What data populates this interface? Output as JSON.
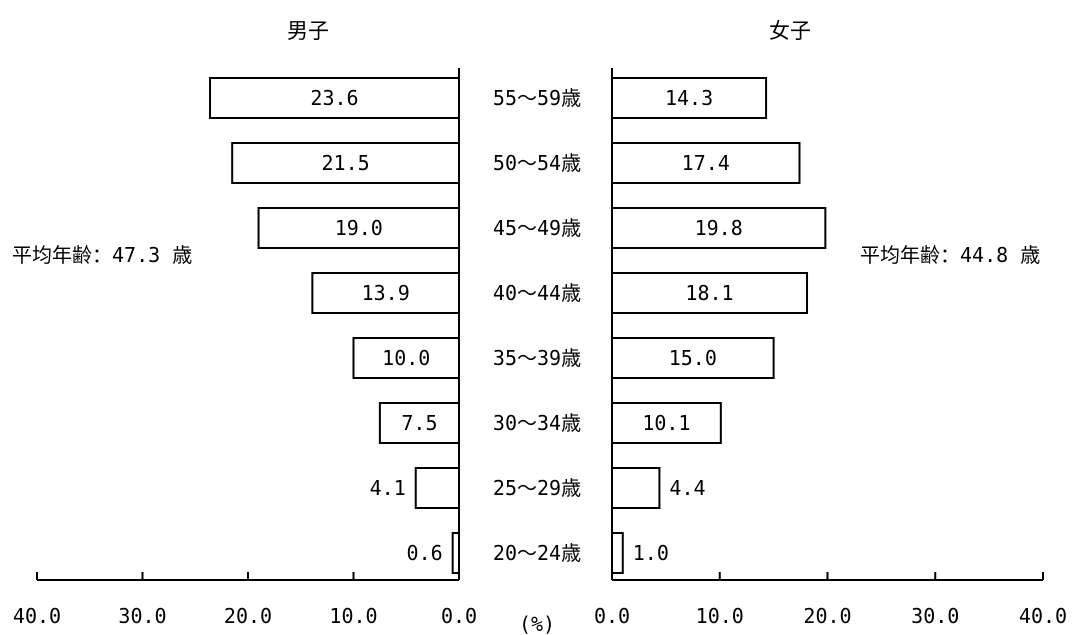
{
  "chart_data": {
    "type": "bar",
    "orientation": "horizontal-diverging",
    "categories": [
      "55～59歳",
      "50～54歳",
      "45～49歳",
      "40～44歳",
      "35～39歳",
      "30～34歳",
      "25～29歳",
      "20～24歳"
    ],
    "series": [
      {
        "name": "男子",
        "values": [
          23.6,
          21.5,
          19.0,
          13.9,
          10.0,
          7.5,
          4.1,
          0.6
        ]
      },
      {
        "name": "女子",
        "values": [
          14.3,
          17.4,
          19.8,
          18.1,
          15.0,
          10.1,
          4.4,
          1.0
        ]
      }
    ],
    "value_labels": {
      "male": [
        "23.6",
        "21.5",
        "19.0",
        "13.9",
        "10.0",
        "7.5",
        "4.1",
        "0.6"
      ],
      "female": [
        "14.3",
        "17.4",
        "19.8",
        "18.1",
        "15.0",
        "10.1",
        "4.4",
        "1.0"
      ]
    },
    "average_labels": {
      "male": "平均年齢：47.3 歳",
      "female": "平均年齢：44.8 歳"
    },
    "unit_label": "(%)",
    "xlim": [
      0,
      40
    ],
    "x_ticks": [
      0,
      10,
      20,
      30,
      40
    ],
    "x_tick_labels": {
      "male": [
        "0.0",
        "10.0",
        "20.0",
        "30.0",
        "40.0"
      ],
      "female": [
        "0.0",
        "10.0",
        "20.0",
        "30.0",
        "40.0"
      ]
    },
    "grid": false,
    "bar_fill": "#ffffff",
    "bar_stroke": "#000000"
  }
}
